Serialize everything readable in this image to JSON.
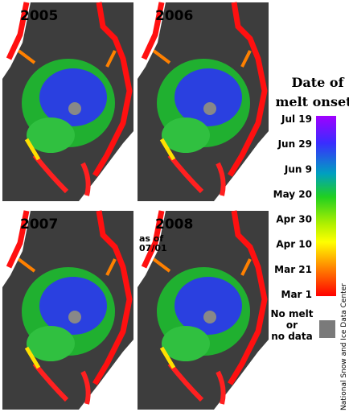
{
  "panels": [
    {
      "year": "2005"
    },
    {
      "year": "2006"
    },
    {
      "year": "2007"
    },
    {
      "year": "2008",
      "note": [
        "as of",
        "07/01"
      ]
    }
  ],
  "legend": {
    "title": [
      "Date of",
      "melt onset"
    ],
    "ticks": [
      "Jul 19",
      "Jun 29",
      "Jun  9",
      "May 20",
      "Apr 30",
      "Apr 10",
      "Mar 21",
      "Mar  1"
    ],
    "no_data": [
      "No melt",
      "or",
      "no data"
    ]
  },
  "credit": "National Snow and Ice Data Center"
}
